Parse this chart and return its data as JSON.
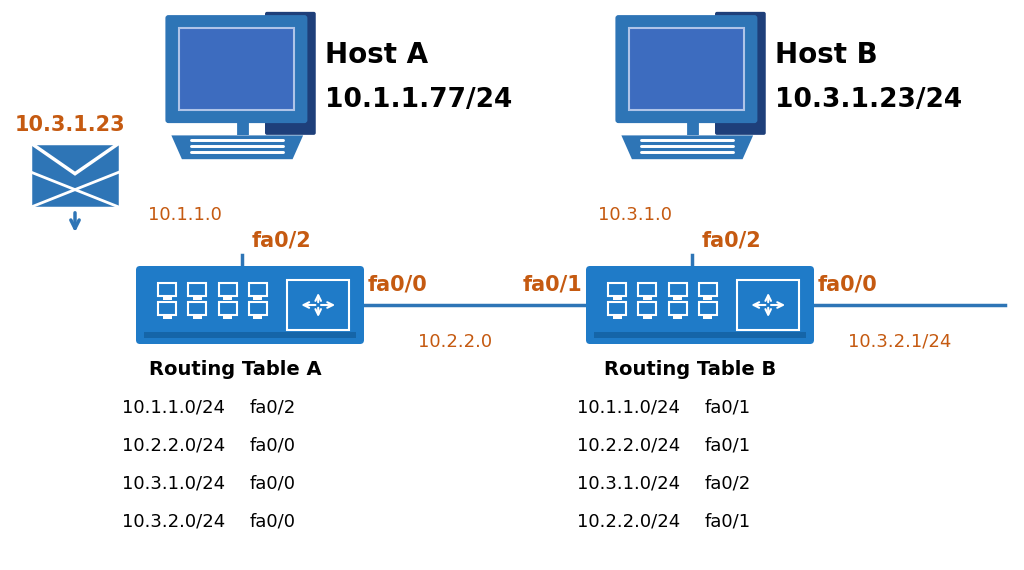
{
  "bg_color": "#ffffff",
  "blue_dark": "#1e3f7a",
  "blue_mid": "#2e75b6",
  "blue_router": "#1f7bc8",
  "orange": "#c55a11",
  "black": "#000000",
  "host_a_label": "Host A",
  "host_a_ip": "10.1.1.77/24",
  "host_b_label": "Host B",
  "host_b_ip": "10.3.1.23/24",
  "envelope_ip": "10.3.1.23",
  "router_a_label": "Routing Table A",
  "router_a_table": [
    [
      "10.1.1.0/24",
      "fa0/2"
    ],
    [
      "10.2.2.0/24",
      "fa0/0"
    ],
    [
      "10.3.1.0/24",
      "fa0/0"
    ],
    [
      "10.3.2.0/24",
      "fa0/0"
    ]
  ],
  "router_b_label": "Routing Table B",
  "router_b_table": [
    [
      "10.1.1.0/24",
      "fa0/1"
    ],
    [
      "10.2.2.0/24",
      "fa0/1"
    ],
    [
      "10.3.1.0/24",
      "fa0/2"
    ],
    [
      "10.2.2.0/24",
      "fa0/1"
    ]
  ],
  "router_a_fa00": "fa0/0",
  "router_a_fa02": "fa0/2",
  "router_b_fa00": "fa0/0",
  "router_b_fa01": "fa0/1",
  "router_b_fa02": "fa0/2",
  "net_1110": "10.1.1.0",
  "net_2220": "10.2.2.0",
  "net_3100": "10.3.1.0",
  "net_3201": "10.3.2.1/24"
}
